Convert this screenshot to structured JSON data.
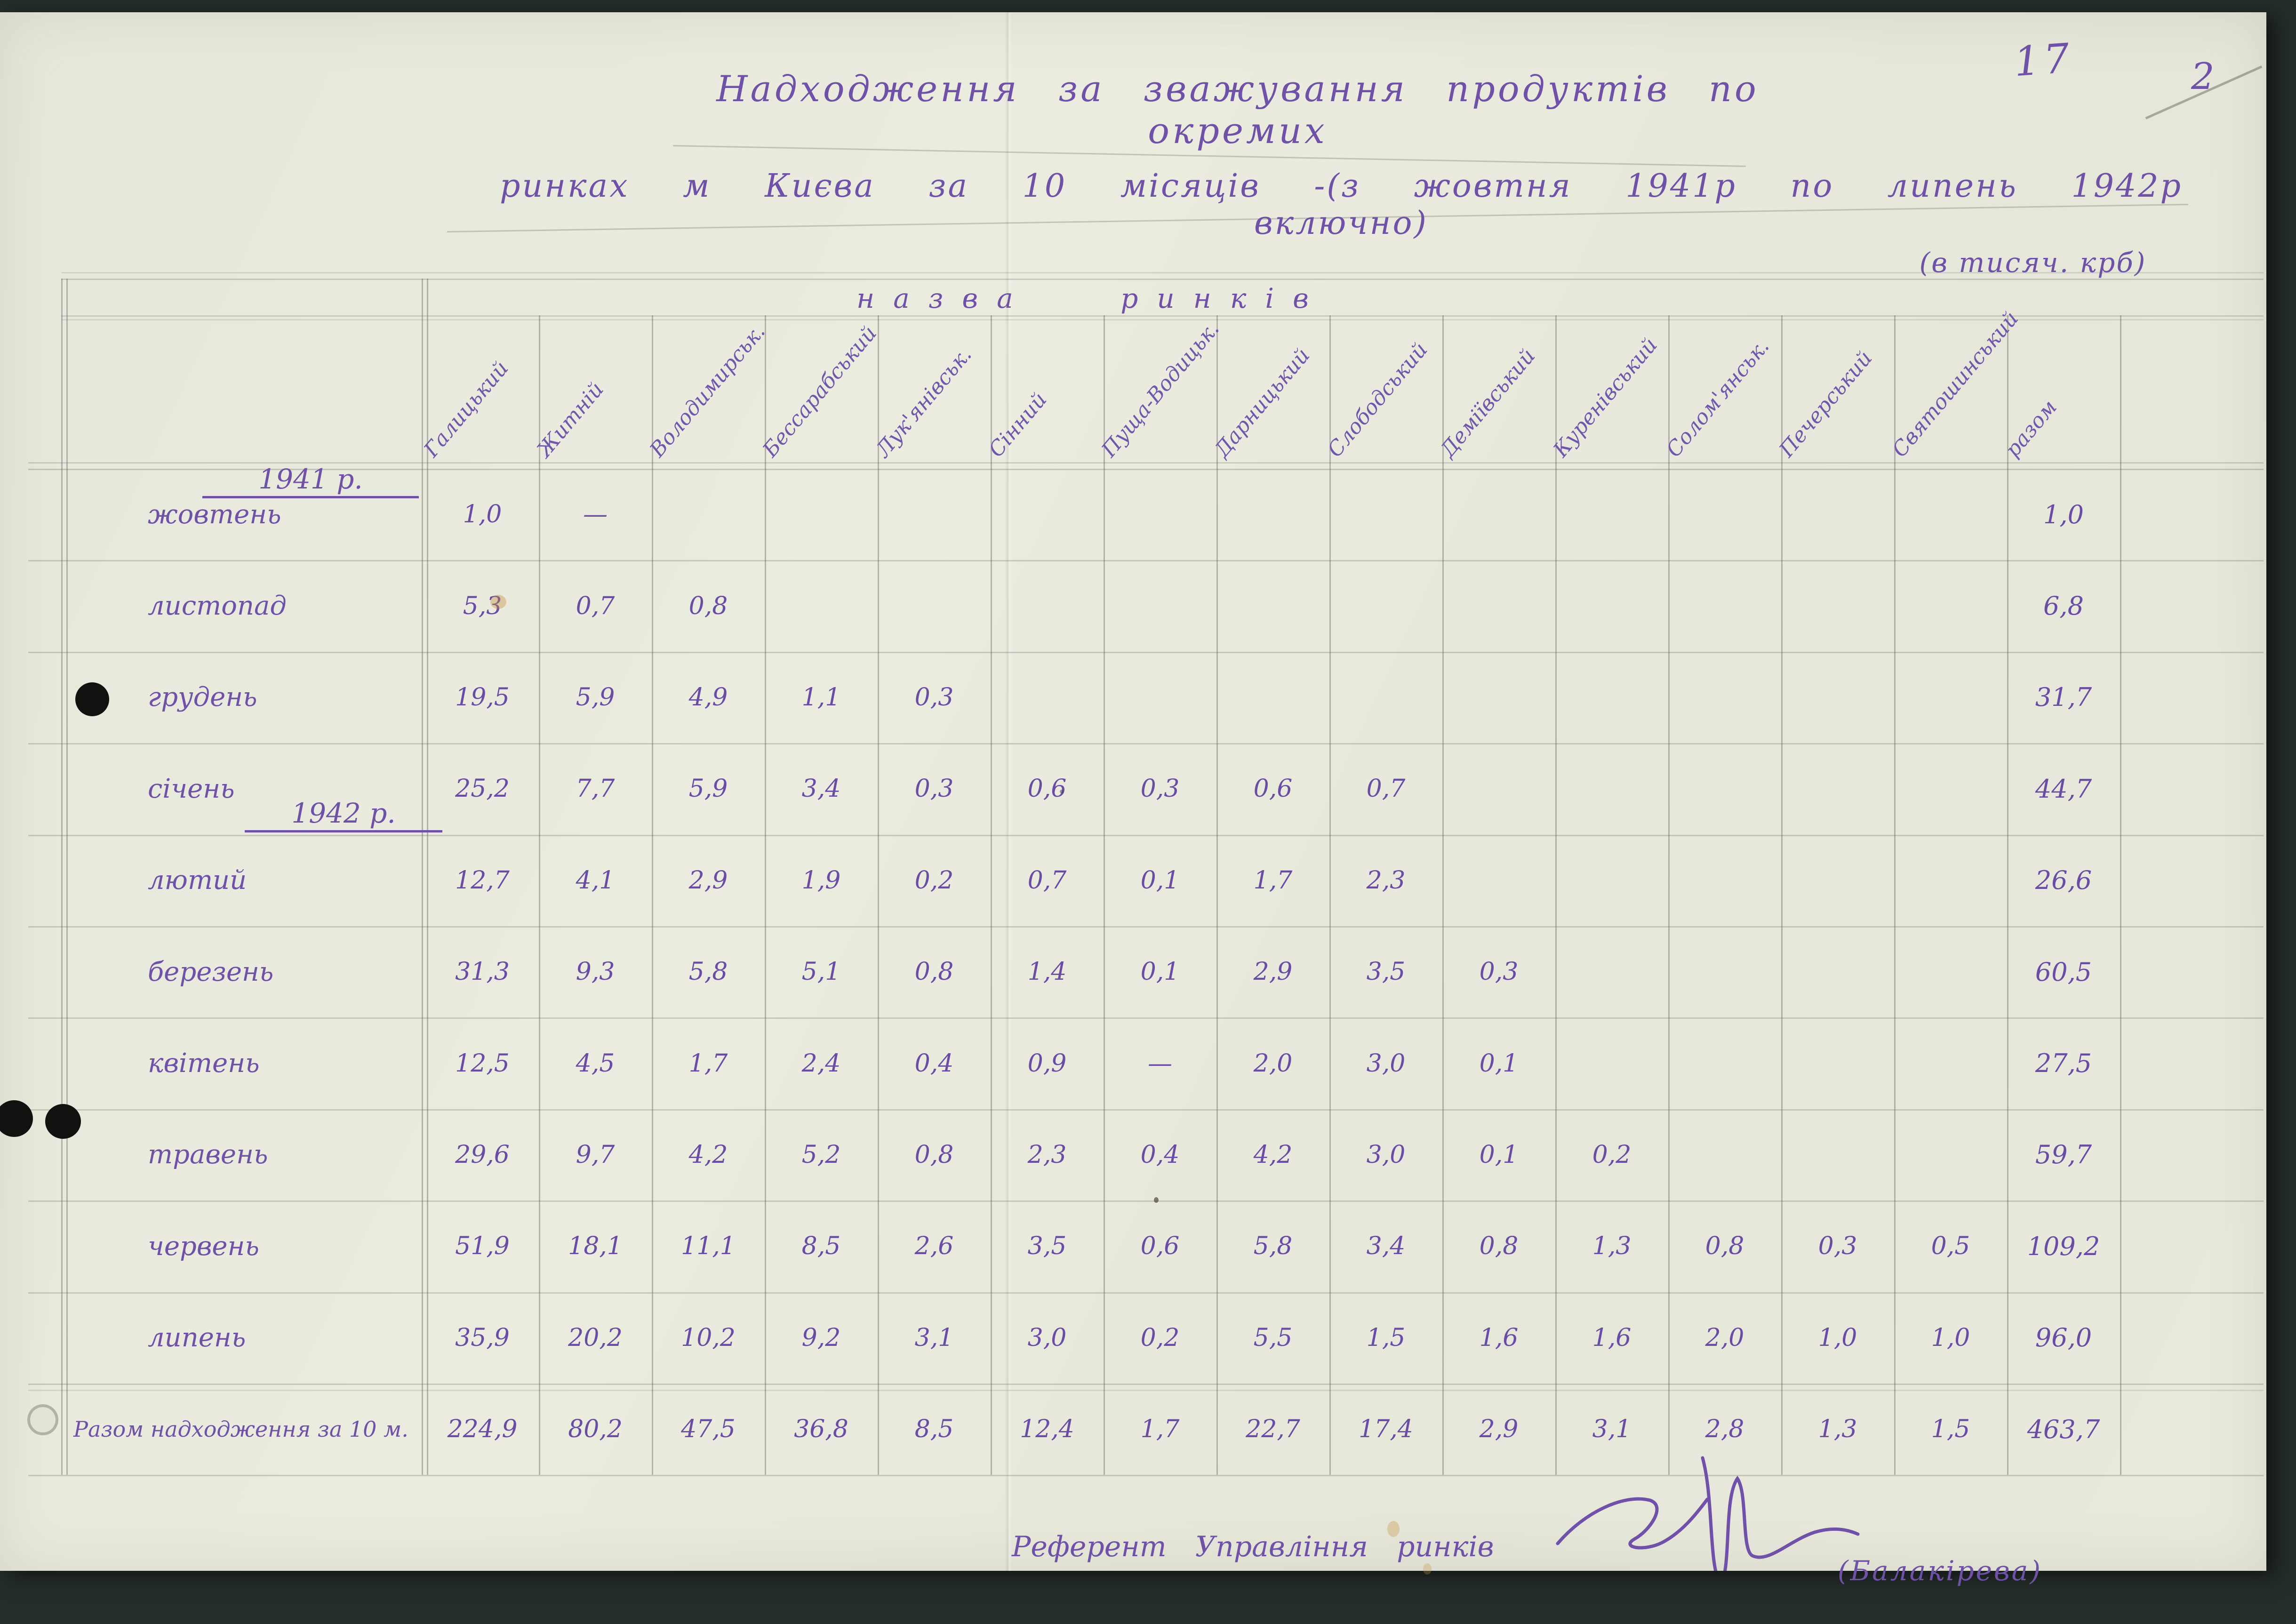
{
  "page": {
    "sheet_number": "17",
    "pencil_number": "2"
  },
  "title": {
    "line1": "Надходження за зважування продуктів по окремих",
    "line2": "ринках м Києва за 10 місяців -(з жовтня 1941р по липень 1942р включно)",
    "unit_note": "(в тисяч. крб)"
  },
  "table": {
    "band_title": "назва ринків",
    "section_1941": "1941 р.",
    "section_1942": "1942 р.",
    "columns": [
      "Галицький",
      "Житній",
      "Володимирськ.",
      "Бессарабський",
      "Лук'янівськ.",
      "Сінний",
      "Пуща-Водицьк.",
      "Дарницький",
      "Слободський",
      "Деміївський",
      "Куренівський",
      "Солом'янськ.",
      "Печерський",
      "Святошинський",
      "разом"
    ],
    "rows": [
      {
        "label": "жовтень",
        "values": [
          "1,0",
          "—",
          "",
          "",
          "",
          "",
          "",
          "",
          "",
          "",
          "",
          "",
          "",
          ""
        ],
        "total": "1,0"
      },
      {
        "label": "листопад",
        "values": [
          "5,3",
          "0,7",
          "0,8",
          "",
          "",
          "",
          "",
          "",
          "",
          "",
          "",
          "",
          "",
          ""
        ],
        "total": "6,8"
      },
      {
        "label": "грудень",
        "values": [
          "19,5",
          "5,9",
          "4,9",
          "1,1",
          "0,3",
          "",
          "",
          "",
          "",
          "",
          "",
          "",
          "",
          ""
        ],
        "total": "31,7"
      },
      {
        "label": "січень",
        "values": [
          "25,2",
          "7,7",
          "5,9",
          "3,4",
          "0,3",
          "0,6",
          "0,3",
          "0,6",
          "0,7",
          "",
          "",
          "",
          "",
          ""
        ],
        "total": "44,7"
      },
      {
        "label": "лютий",
        "values": [
          "12,7",
          "4,1",
          "2,9",
          "1,9",
          "0,2",
          "0,7",
          "0,1",
          "1,7",
          "2,3",
          "",
          "",
          "",
          "",
          ""
        ],
        "total": "26,6"
      },
      {
        "label": "березень",
        "values": [
          "31,3",
          "9,3",
          "5,8",
          "5,1",
          "0,8",
          "1,4",
          "0,1",
          "2,9",
          "3,5",
          "0,3",
          "",
          "",
          "",
          ""
        ],
        "total": "60,5"
      },
      {
        "label": "квітень",
        "values": [
          "12,5",
          "4,5",
          "1,7",
          "2,4",
          "0,4",
          "0,9",
          "—",
          "2,0",
          "3,0",
          "0,1",
          "",
          "",
          "",
          ""
        ],
        "total": "27,5"
      },
      {
        "label": "травень",
        "values": [
          "29,6",
          "9,7",
          "4,2",
          "5,2",
          "0,8",
          "2,3",
          "0,4",
          "4,2",
          "3,0",
          "0,1",
          "0,2",
          "",
          "",
          ""
        ],
        "total": "59,7"
      },
      {
        "label": "червень",
        "values": [
          "51,9",
          "18,1",
          "11,1",
          "8,5",
          "2,6",
          "3,5",
          "0,6",
          "5,8",
          "3,4",
          "0,8",
          "1,3",
          "0,8",
          "0,3",
          "0,5"
        ],
        "total": "109,2"
      },
      {
        "label": "липень",
        "values": [
          "35,9",
          "20,2",
          "10,2",
          "9,2",
          "3,1",
          "3,0",
          "0,2",
          "5,5",
          "1,5",
          "1,6",
          "1,6",
          "2,0",
          "1,0",
          "1,0"
        ],
        "total": "96,0"
      },
      {
        "label": "Разом надходження за 10 м.",
        "values": [
          "224,9",
          "80,2",
          "47,5",
          "36,8",
          "8,5",
          "12,4",
          "1,7",
          "22,7",
          "17,4",
          "2,9",
          "3,1",
          "2,8",
          "1,3",
          "1,5"
        ],
        "total": "463,7",
        "is_total_row": true
      }
    ]
  },
  "footer": {
    "role_line": "Референт Управління ринків",
    "signer_name": "(Балакірева)"
  },
  "colors": {
    "ink_violet": "#6f51a8",
    "pencil_gray": "#62665c",
    "paper": "#e8e9dd",
    "background": "#242d29"
  }
}
